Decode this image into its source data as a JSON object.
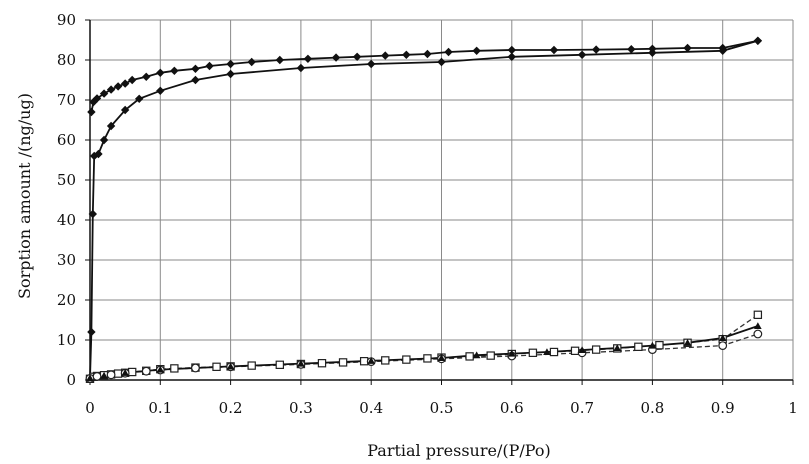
{
  "chart_data": {
    "type": "line",
    "xlabel": "Partial pressure/(P/Po)",
    "ylabel": "Sorption amount /(ng/ug)",
    "xlim": [
      0,
      1.0
    ],
    "ylim": [
      0,
      90
    ],
    "grid": true,
    "x_ticks": [
      0,
      0.1,
      0.2,
      0.3,
      0.4,
      0.5,
      0.6,
      0.7,
      0.8,
      0.9,
      1
    ],
    "x_tick_labels": [
      "0",
      "0.1",
      "0.2",
      "0.3",
      "0.4",
      "0.5",
      "0.6",
      "0.7",
      "0.8",
      "0.9",
      "1"
    ],
    "y_ticks": [
      0,
      10,
      20,
      30,
      40,
      50,
      60,
      70,
      80,
      90
    ],
    "y_tick_labels": [
      "0",
      "10",
      "20",
      "30",
      "40",
      "50",
      "60",
      "70",
      "80",
      "90"
    ],
    "series": [
      {
        "marker": "filled-diamond",
        "line": "solid",
        "color": "#111111",
        "points": [
          [
            0.0,
            0.5
          ],
          [
            0.002,
            12
          ],
          [
            0.004,
            41.5
          ],
          [
            0.006,
            56
          ],
          [
            0.012,
            56.5
          ],
          [
            0.02,
            60
          ],
          [
            0.03,
            63.5
          ],
          [
            0.05,
            67.5
          ],
          [
            0.07,
            70.3
          ],
          [
            0.1,
            72.3
          ],
          [
            0.15,
            75
          ],
          [
            0.2,
            76.5
          ],
          [
            0.3,
            78
          ],
          [
            0.4,
            79
          ],
          [
            0.5,
            79.5
          ],
          [
            0.6,
            80.8
          ],
          [
            0.7,
            81.3
          ],
          [
            0.8,
            81.8
          ],
          [
            0.9,
            82.3
          ],
          [
            0.95,
            84.8
          ]
        ]
      },
      {
        "marker": "filled-diamond",
        "line": "solid",
        "color": "#111111",
        "points": [
          [
            0.95,
            84.8
          ],
          [
            0.9,
            83
          ],
          [
            0.85,
            83
          ],
          [
            0.8,
            82.8
          ],
          [
            0.77,
            82.7
          ],
          [
            0.72,
            82.6
          ],
          [
            0.66,
            82.5
          ],
          [
            0.6,
            82.5
          ],
          [
            0.55,
            82.3
          ],
          [
            0.51,
            82
          ],
          [
            0.48,
            81.5
          ],
          [
            0.45,
            81.3
          ],
          [
            0.42,
            81.1
          ],
          [
            0.38,
            80.8
          ],
          [
            0.35,
            80.6
          ],
          [
            0.31,
            80.3
          ],
          [
            0.27,
            80
          ],
          [
            0.23,
            79.5
          ],
          [
            0.2,
            79
          ],
          [
            0.17,
            78.5
          ],
          [
            0.15,
            77.8
          ],
          [
            0.12,
            77.3
          ],
          [
            0.1,
            76.8
          ],
          [
            0.08,
            75.8
          ],
          [
            0.06,
            75
          ],
          [
            0.05,
            74.1
          ],
          [
            0.04,
            73.4
          ],
          [
            0.03,
            72.6
          ],
          [
            0.02,
            71.6
          ],
          [
            0.01,
            70.4
          ],
          [
            0.005,
            69.5
          ],
          [
            0.002,
            67
          ]
        ]
      },
      {
        "marker": "open-square",
        "line": "dashed",
        "color": "#333333",
        "points": [
          [
            0.0,
            0.3
          ],
          [
            0.005,
            0.8
          ],
          [
            0.01,
            1.0
          ],
          [
            0.02,
            1.2
          ],
          [
            0.03,
            1.4
          ],
          [
            0.04,
            1.6
          ],
          [
            0.05,
            1.8
          ],
          [
            0.06,
            2.0
          ],
          [
            0.08,
            2.3
          ],
          [
            0.1,
            2.7
          ],
          [
            0.12,
            2.9
          ],
          [
            0.15,
            3.1
          ],
          [
            0.18,
            3.3
          ],
          [
            0.2,
            3.4
          ],
          [
            0.23,
            3.6
          ],
          [
            0.27,
            3.8
          ],
          [
            0.3,
            4.0
          ],
          [
            0.33,
            4.2
          ],
          [
            0.36,
            4.4
          ],
          [
            0.39,
            4.7
          ],
          [
            0.42,
            4.9
          ],
          [
            0.45,
            5.1
          ],
          [
            0.48,
            5.4
          ],
          [
            0.5,
            5.6
          ],
          [
            0.54,
            5.9
          ],
          [
            0.57,
            6.1
          ],
          [
            0.6,
            6.5
          ],
          [
            0.63,
            6.8
          ],
          [
            0.66,
            7.0
          ],
          [
            0.69,
            7.3
          ],
          [
            0.72,
            7.6
          ],
          [
            0.75,
            7.9
          ],
          [
            0.78,
            8.3
          ],
          [
            0.81,
            8.7
          ],
          [
            0.85,
            9.3
          ],
          [
            0.9,
            10.2
          ],
          [
            0.95,
            16.3
          ]
        ]
      },
      {
        "marker": "open-circle",
        "line": "dashed",
        "color": "#333333",
        "points": [
          [
            0.0,
            0.4
          ],
          [
            0.01,
            0.9
          ],
          [
            0.03,
            1.3
          ],
          [
            0.05,
            1.7
          ],
          [
            0.08,
            2.2
          ],
          [
            0.1,
            2.5
          ],
          [
            0.15,
            3.0
          ],
          [
            0.2,
            3.3
          ],
          [
            0.3,
            3.9
          ],
          [
            0.4,
            4.6
          ],
          [
            0.5,
            5.3
          ],
          [
            0.6,
            6.0
          ],
          [
            0.7,
            6.8
          ],
          [
            0.8,
            7.6
          ],
          [
            0.9,
            8.6
          ],
          [
            0.95,
            11.5
          ]
        ]
      },
      {
        "marker": "filled-triangle",
        "line": "solid",
        "color": "#111111",
        "points": [
          [
            0.0,
            0.5
          ],
          [
            0.02,
            1.1
          ],
          [
            0.05,
            1.8
          ],
          [
            0.1,
            2.6
          ],
          [
            0.2,
            3.4
          ],
          [
            0.3,
            4.1
          ],
          [
            0.4,
            4.8
          ],
          [
            0.5,
            5.5
          ],
          [
            0.55,
            6.2
          ],
          [
            0.6,
            6.6
          ],
          [
            0.65,
            7.0
          ],
          [
            0.7,
            7.5
          ],
          [
            0.75,
            8.0
          ],
          [
            0.8,
            8.6
          ],
          [
            0.85,
            9.3
          ],
          [
            0.9,
            10.5
          ],
          [
            0.95,
            13.5
          ]
        ]
      }
    ]
  }
}
